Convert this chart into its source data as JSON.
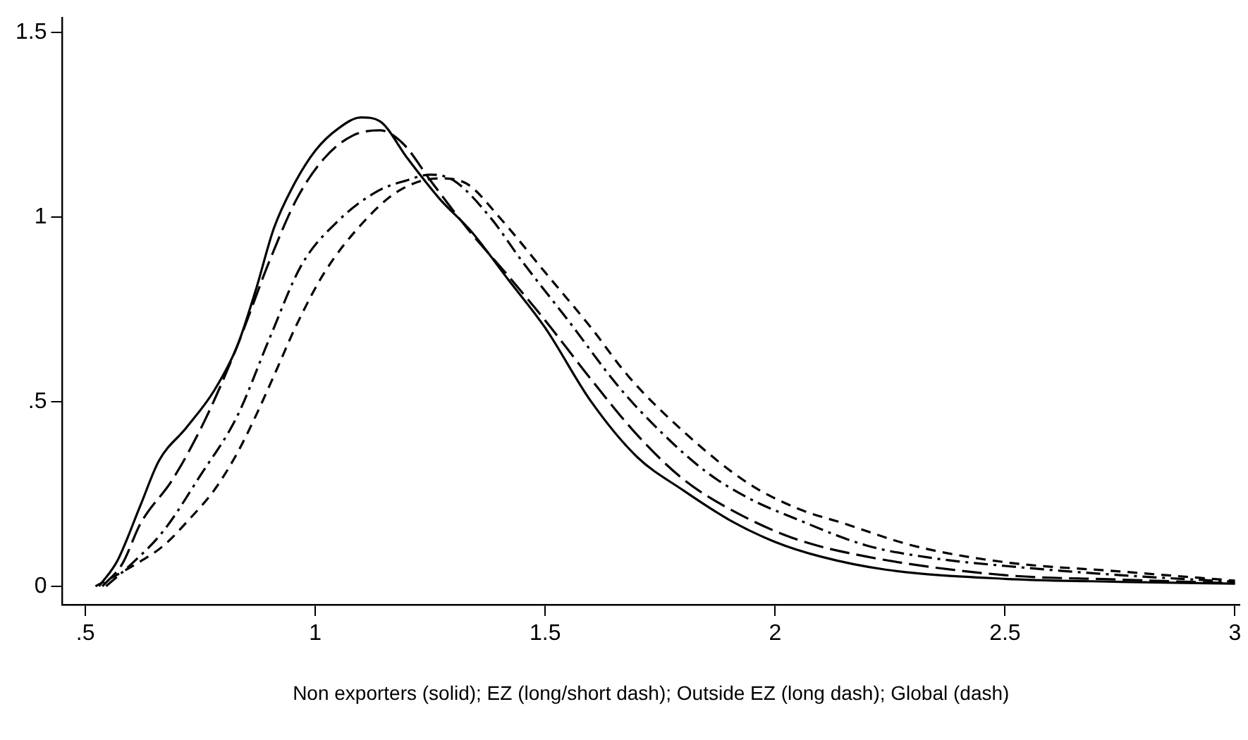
{
  "chart_data": {
    "type": "line",
    "xlabel": "Non exporters (solid); EZ (long/short dash); Outside EZ (long dash); Global (dash)",
    "xlim": [
      0.45,
      3.01
    ],
    "ylim": [
      -0.05,
      1.54
    ],
    "xticks": [
      {
        "value": 0.5,
        "label": ".5"
      },
      1,
      1.5,
      2,
      2.5,
      3
    ],
    "yticks": [
      0,
      {
        "value": 0.5,
        "label": ".5"
      },
      1,
      1.5
    ],
    "grid": false,
    "legend": false,
    "marker": "none",
    "series": [
      {
        "color": "#000000",
        "line_style": "solid",
        "x": [
          0.53,
          0.57,
          0.62,
          0.66,
          0.72,
          0.78,
          0.83,
          0.87,
          0.91,
          0.95,
          1.0,
          1.05,
          1.1,
          1.14,
          1.2,
          1.27,
          1.34,
          1.42,
          1.5,
          1.6,
          1.7,
          1.8,
          1.9,
          2.0,
          2.1,
          2.24,
          2.5,
          2.75,
          3.0
        ],
        "values": [
          0,
          0.07,
          0.22,
          0.34,
          0.43,
          0.53,
          0.65,
          0.8,
          0.97,
          1.08,
          1.18,
          1.24,
          1.27,
          1.26,
          1.16,
          1.05,
          0.96,
          0.83,
          0.7,
          0.5,
          0.35,
          0.26,
          0.18,
          0.12,
          0.08,
          0.045,
          0.02,
          0.012,
          0.007
        ]
      },
      {
        "color": "#000000",
        "line_style": "dashdot",
        "x": [
          0.545,
          0.6,
          0.67,
          0.75,
          0.83,
          0.9,
          0.97,
          1.05,
          1.135,
          1.2,
          1.25,
          1.3,
          1.38,
          1.45,
          1.55,
          1.66,
          1.75,
          1.85,
          1.94,
          2.05,
          2.2,
          2.35,
          2.5,
          2.75,
          3.0
        ],
        "values": [
          0,
          0.06,
          0.15,
          0.3,
          0.46,
          0.67,
          0.87,
          0.99,
          1.07,
          1.1,
          1.115,
          1.1,
          1.0,
          0.88,
          0.72,
          0.54,
          0.42,
          0.31,
          0.24,
          0.18,
          0.11,
          0.075,
          0.055,
          0.03,
          0.012
        ]
      },
      {
        "color": "#000000",
        "line_style": "longdash",
        "x": [
          0.537,
          0.58,
          0.62,
          0.69,
          0.76,
          0.83,
          0.9,
          0.96,
          1.02,
          1.08,
          1.14,
          1.19,
          1.25,
          1.33,
          1.42,
          1.5,
          1.6,
          1.7,
          1.8,
          1.9,
          2.04,
          2.2,
          2.5,
          2.75,
          3.0
        ],
        "values": [
          0,
          0.06,
          0.17,
          0.29,
          0.45,
          0.65,
          0.88,
          1.05,
          1.16,
          1.22,
          1.235,
          1.2,
          1.1,
          0.97,
          0.84,
          0.72,
          0.56,
          0.41,
          0.29,
          0.21,
          0.13,
          0.08,
          0.03,
          0.018,
          0.008
        ]
      },
      {
        "color": "#000000",
        "line_style": "dashed",
        "x": [
          0.522,
          0.61,
          0.67,
          0.725,
          0.78,
          0.83,
          0.87,
          0.91,
          0.96,
          1.02,
          1.1,
          1.18,
          1.27,
          1.33,
          1.4,
          1.5,
          1.6,
          1.68,
          1.8,
          1.94,
          2.05,
          2.15,
          2.3,
          2.5,
          2.75,
          3.0
        ],
        "values": [
          0,
          0.06,
          0.11,
          0.18,
          0.26,
          0.36,
          0.46,
          0.57,
          0.71,
          0.85,
          0.98,
          1.07,
          1.105,
          1.09,
          1.0,
          0.85,
          0.7,
          0.57,
          0.42,
          0.28,
          0.21,
          0.17,
          0.11,
          0.065,
          0.04,
          0.015
        ]
      }
    ]
  }
}
